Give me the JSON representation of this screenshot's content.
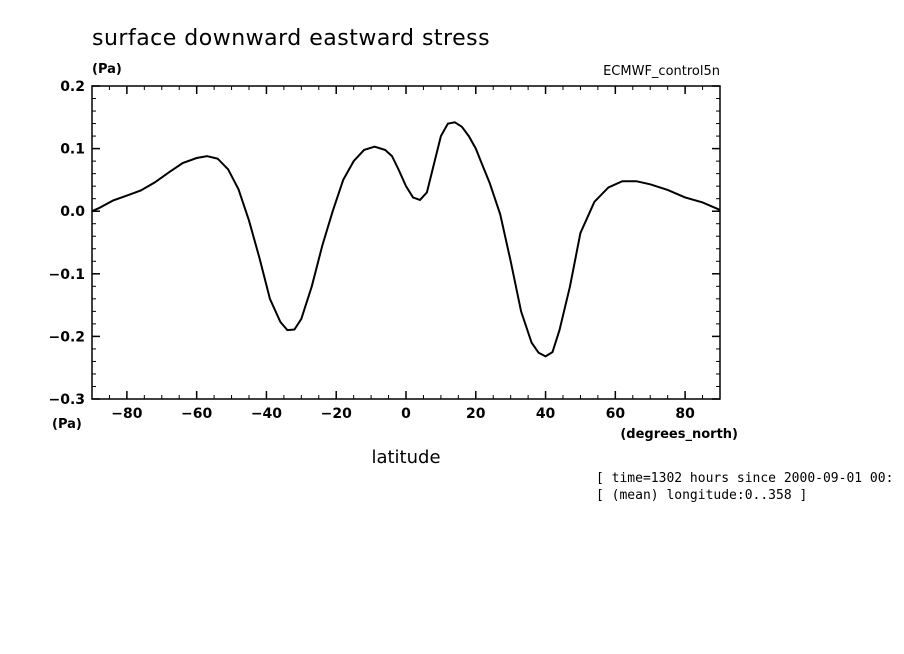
{
  "chart_data": {
    "type": "line",
    "title": "surface downward eastward stress",
    "y_units": "(Pa)",
    "y_units_bottom": "(Pa)",
    "model_label": "ECMWF_control5n",
    "xlabel": "latitude",
    "x_units": "(degrees_north)",
    "xlim": [
      -90,
      90
    ],
    "ylim": [
      -0.3,
      0.2
    ],
    "x_ticks": [
      -80,
      -60,
      -40,
      -20,
      0,
      20,
      40,
      60,
      80
    ],
    "x_tick_labels": [
      "−80",
      "−60",
      "−40",
      "−20",
      "0",
      "20",
      "40",
      "60",
      "80"
    ],
    "y_ticks": [
      0.2,
      0.1,
      0.0,
      -0.1,
      -0.2,
      -0.3
    ],
    "y_tick_labels": [
      "0.2",
      "0.1",
      "0.0",
      "−0.1",
      "−0.2",
      "−0.3"
    ],
    "grid": false,
    "annotations": [
      "[ time=1302 hours since 2000-09-01 00:",
      "[ (mean) longitude:0..358 ]"
    ],
    "series": [
      {
        "x": [
          -90,
          -88,
          -84,
          -80,
          -76,
          -72,
          -68,
          -64,
          -60,
          -57,
          -54,
          -51,
          -48,
          -45,
          -42,
          -39,
          -36,
          -34,
          -32,
          -30,
          -27,
          -24,
          -21,
          -18,
          -15,
          -12,
          -9,
          -6,
          -4,
          -2,
          0,
          2,
          4,
          6,
          8,
          10,
          12,
          14,
          16,
          18,
          20,
          22,
          24,
          27,
          30,
          33,
          36,
          38,
          40,
          42,
          44,
          47,
          50,
          54,
          58,
          62,
          66,
          70,
          75,
          80,
          85,
          90
        ],
        "y": [
          0.0,
          0.005,
          0.017,
          0.025,
          0.033,
          0.046,
          0.062,
          0.077,
          0.085,
          0.088,
          0.084,
          0.067,
          0.035,
          -0.015,
          -0.075,
          -0.14,
          -0.177,
          -0.19,
          -0.189,
          -0.172,
          -0.12,
          -0.055,
          0.0,
          0.05,
          0.08,
          0.098,
          0.103,
          0.098,
          0.088,
          0.065,
          0.04,
          0.022,
          0.018,
          0.03,
          0.075,
          0.12,
          0.14,
          0.142,
          0.135,
          0.12,
          0.1,
          0.072,
          0.045,
          -0.005,
          -0.08,
          -0.16,
          -0.21,
          -0.226,
          -0.232,
          -0.225,
          -0.19,
          -0.12,
          -0.035,
          0.015,
          0.038,
          0.048,
          0.048,
          0.043,
          0.034,
          0.022,
          0.014,
          0.002
        ]
      }
    ]
  }
}
